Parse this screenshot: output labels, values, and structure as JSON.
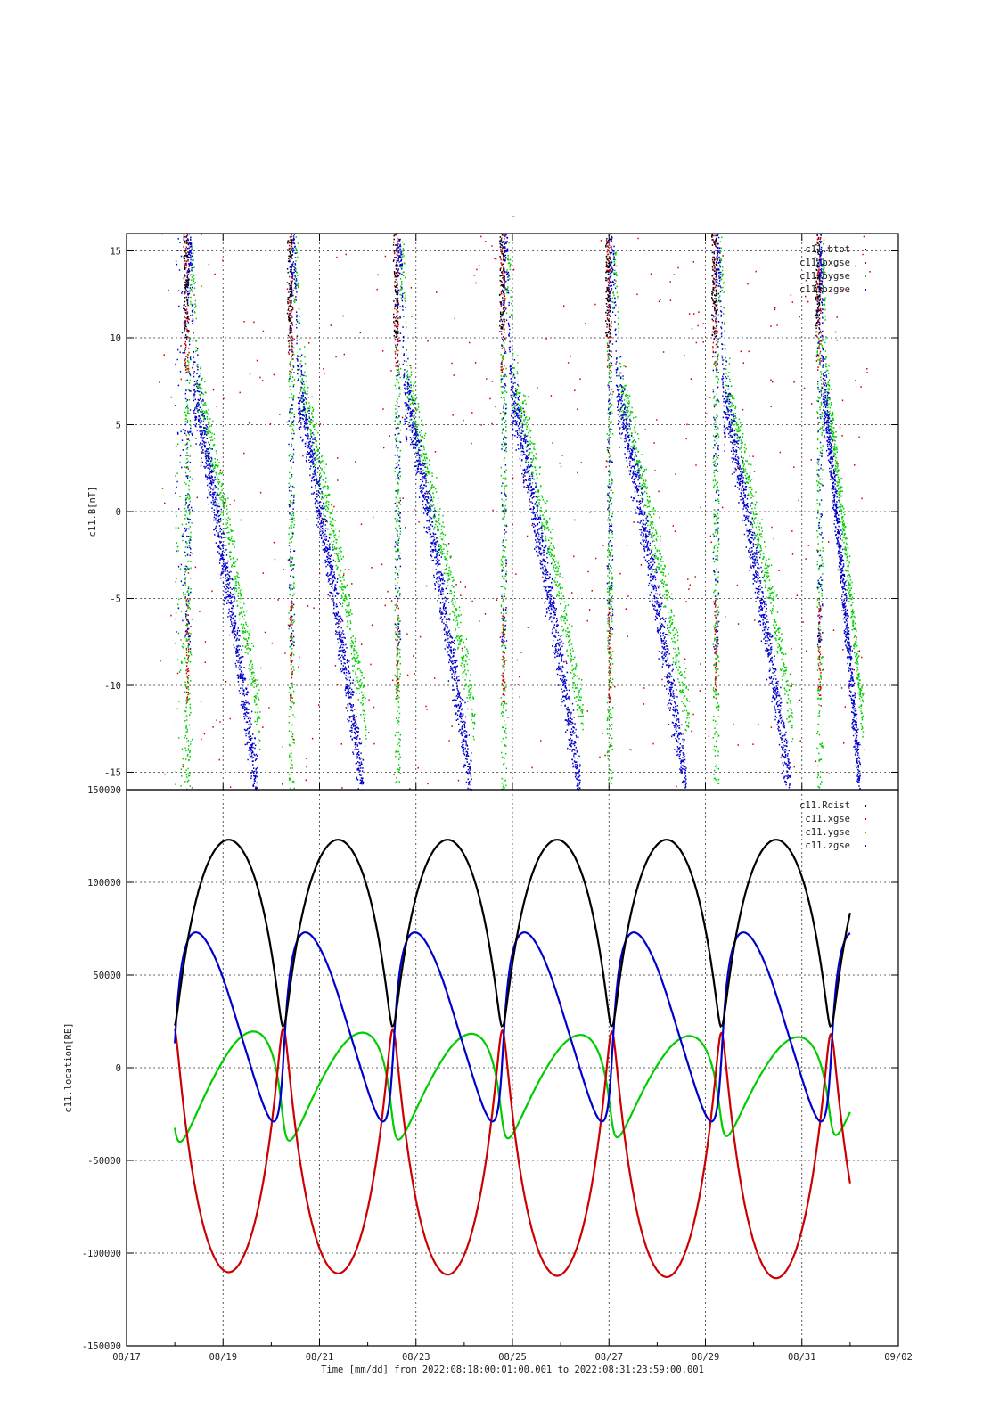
{
  "page": {
    "top_mark": "-"
  },
  "chart_data": [
    {
      "type": "scatter",
      "ylabel": "c11.B[nT]",
      "ylim": [
        -16,
        16
      ],
      "yticks": [
        15,
        10,
        5,
        0,
        -5,
        -10,
        -15
      ],
      "xlim": [
        "2022-08-17",
        "2022-09-02"
      ],
      "grid": true,
      "legend_position": "top-right",
      "series": [
        {
          "name": "c11.btot",
          "color": "#000000",
          "variable": "btot"
        },
        {
          "name": "c11.bxgse",
          "color": "#cc0000",
          "variable": "bxgse"
        },
        {
          "name": "c11.bygse",
          "color": "#00cc00",
          "variable": "bygse"
        },
        {
          "name": "c11.bzgse",
          "color": "#0000cc",
          "variable": "bzgse"
        }
      ],
      "pattern": {
        "description_values": "approximate per-orbit traces in nT; btot and bxgse mostly off-scale above 16",
        "orbit_starts": [
          "2022-08-18 06:00",
          "2022-08-20 09:00",
          "2022-08-22 12:00",
          "2022-08-24 14:00",
          "2022-08-26 17:00",
          "2022-08-28 20:00",
          "2022-08-30 23:00"
        ],
        "bzgse_start": 8,
        "bzgse_end": -16,
        "bygse_start": 5,
        "bygse_end": -16
      }
    },
    {
      "type": "line",
      "ylabel": "c11.location[RE]",
      "xlabel": "Time [mm/dd]  from 2022:08:18:00:01:00.001  to  2022:08:31:23:59:00.001",
      "ylim": [
        -150000,
        150000
      ],
      "yticks": [
        150000,
        100000,
        50000,
        0,
        -50000,
        -100000,
        -150000
      ],
      "xlim": [
        "2022-08-17",
        "2022-09-02"
      ],
      "xticks": [
        "08/17",
        "08/19",
        "08/21",
        "08/23",
        "08/25",
        "08/27",
        "08/29",
        "08/31",
        "09/02"
      ],
      "grid": true,
      "legend_position": "top-right",
      "orbit_period_days": 2.27,
      "perigee_days_since_0817": [
        3.25,
        5.52,
        7.79,
        10.06,
        12.33,
        14.6
      ],
      "series": [
        {
          "name": "c11.Rdist",
          "color": "#000000",
          "amplitude_max": 123000,
          "min": 22000
        },
        {
          "name": "c11.xgse",
          "color": "#cc0000",
          "min": -110000,
          "max": 22000
        },
        {
          "name": "c11.ygse",
          "color": "#00cc00",
          "min": -45000,
          "max": 25000
        },
        {
          "name": "c11.zgse",
          "color": "#0000cc",
          "min": -29000,
          "max": 73000
        }
      ]
    }
  ]
}
